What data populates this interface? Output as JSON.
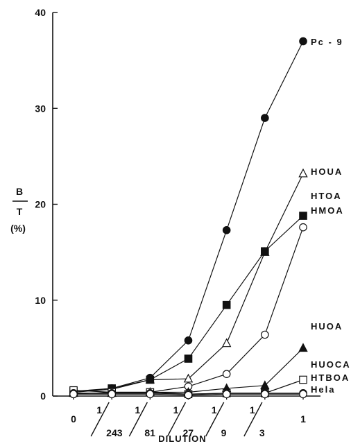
{
  "chart_data": {
    "type": "line",
    "xlabel": "DILUTION",
    "ylabel": {
      "numerator": "B",
      "denominator": "T",
      "unit": "(%)"
    },
    "ylim": [
      0,
      40
    ],
    "yticks": [
      "0",
      "10",
      "20",
      "30",
      "40"
    ],
    "x": [
      {
        "top": "0",
        "bottom": ""
      },
      {
        "top": "1",
        "bottom": "243"
      },
      {
        "top": "1",
        "bottom": "81"
      },
      {
        "top": "1",
        "bottom": "27"
      },
      {
        "top": "1",
        "bottom": "9"
      },
      {
        "top": "1",
        "bottom": "3"
      },
      {
        "top": "1",
        "bottom": ""
      }
    ],
    "series": [
      {
        "name": "Pc - 9",
        "marker": "filled-circle",
        "values": [
          0.4,
          0.8,
          1.9,
          5.8,
          17.3,
          29.0,
          37.0
        ]
      },
      {
        "name": "HOUA",
        "marker": "open-triangle",
        "values": [
          0.4,
          0.7,
          1.7,
          1.8,
          5.5,
          15.0,
          23.2
        ]
      },
      {
        "name": "HTOA",
        "marker": "filled-square",
        "values": [
          0.5,
          0.8,
          1.7,
          3.9,
          9.5,
          15.1,
          18.8
        ]
      },
      {
        "name": "HMOA",
        "marker": "open-circle",
        "values": [
          0.2,
          0.4,
          0.4,
          1.0,
          2.3,
          6.4,
          17.6
        ]
      },
      {
        "name": "HUOA",
        "marker": "filled-triangle",
        "values": [
          0.3,
          0.3,
          0.4,
          0.4,
          0.8,
          1.1,
          5.0
        ]
      },
      {
        "name": "HUOCA",
        "marker": "open-square",
        "values": [
          0.6,
          0.4,
          0.4,
          0.2,
          0.3,
          0.3,
          1.7
        ]
      },
      {
        "name": "HTBOA",
        "marker": "open-circle",
        "values": [
          0.3,
          0.3,
          0.3,
          0.2,
          0.3,
          0.3,
          0.3
        ]
      },
      {
        "name": "Hela",
        "marker": "open-circle",
        "values": [
          0.2,
          0.2,
          0.2,
          0.1,
          0.2,
          0.2,
          0.2
        ]
      }
    ]
  }
}
